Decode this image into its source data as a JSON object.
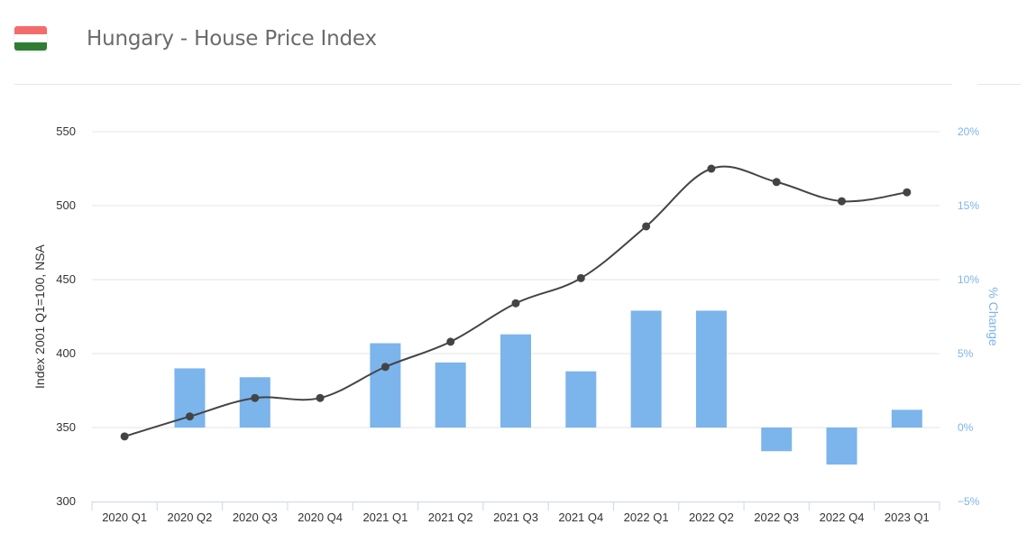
{
  "header": {
    "title": "Hungary - House Price Index",
    "flag": {
      "name": "hungary-flag",
      "colors": [
        "#f46b6b",
        "#ffffff",
        "#2e7d32"
      ]
    }
  },
  "chart_data": {
    "type": "bar+line",
    "categories": [
      "2020 Q1",
      "2020 Q2",
      "2020 Q3",
      "2020 Q4",
      "2021 Q1",
      "2021 Q2",
      "2021 Q3",
      "2021 Q4",
      "2022 Q1",
      "2022 Q2",
      "2022 Q3",
      "2022 Q4",
      "2023 Q1"
    ],
    "series": [
      {
        "kind": "line",
        "axis": "left",
        "color": "#444444",
        "values": [
          344,
          357.5,
          370,
          370,
          391,
          408,
          434,
          451,
          486,
          525,
          516,
          503,
          509
        ]
      },
      {
        "kind": "bar",
        "axis": "right",
        "color": "#7cb4ec",
        "values": [
          0,
          4.0,
          3.4,
          0,
          5.7,
          4.4,
          6.3,
          3.8,
          7.9,
          7.9,
          -1.6,
          -2.5,
          1.2
        ]
      }
    ],
    "ylabel_left": "Index 2001 Q1=100, NSA",
    "ylabel_right": "% Change",
    "ylim_left": [
      300,
      550
    ],
    "yticks_left": [
      "300",
      "350",
      "400",
      "450",
      "500",
      "550"
    ],
    "ylim_right": [
      -5,
      20
    ],
    "yticks_right": [
      "-5%",
      "0%",
      "5%",
      "10%",
      "15%",
      "20%"
    ],
    "grid": true,
    "colors": {
      "left_axis_text": "#333333",
      "right_axis_text": "#7cb4ec",
      "grid": "#e6e6e6"
    }
  }
}
